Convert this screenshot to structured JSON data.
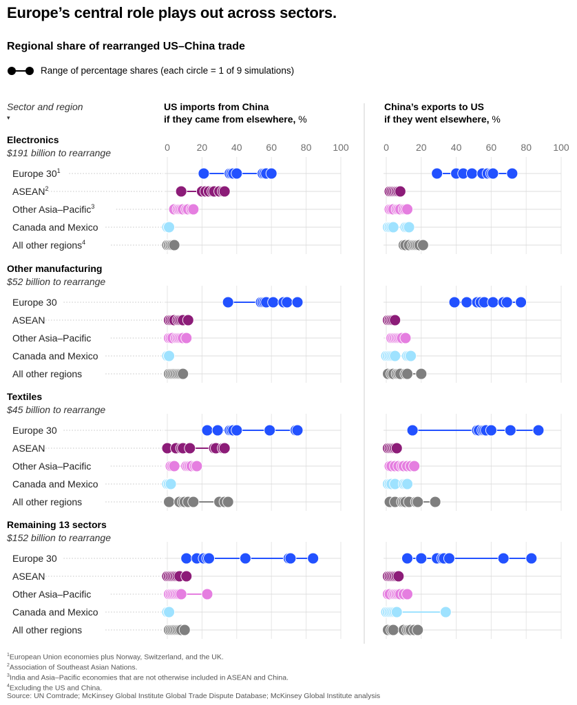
{
  "headline": "Europe’s central role plays out across sectors.",
  "subtitle": "Regional share of rearranged US–China trade",
  "legend": {
    "text": "Range of percentage shares (each circle = 1 of 9 simulations)"
  },
  "row_header": "Sector and region",
  "row_header_marker": "▾",
  "colors": {
    "Europe 30": "#2251ff",
    "ASEAN": "#8c1c78",
    "Other Asia–Pacific": "#e57ee0",
    "Canada and Mexico": "#9ee2ff",
    "All other regions": "#7f7f7f"
  },
  "footnotes": [
    {
      "mark": "1",
      "text": "European Union economies plus Norway, Switzerland, and the UK."
    },
    {
      "mark": "2",
      "text": "Association of Southeast Asian Nations."
    },
    {
      "mark": "3",
      "text": "India and Asia–Pacific economies that are not otherwise included in ASEAN and China."
    },
    {
      "mark": "4",
      "text": "Excluding the US and China."
    },
    {
      "mark": "",
      "text": "Source: UN Comtrade; McKinsey Global Institute Global Trade Dispute Database; McKinsey Global Institute analysis"
    }
  ],
  "chart_data": {
    "type": "scatter",
    "panels": [
      {
        "title_line1": "US imports from China",
        "title_line2": "if they came from elsewhere,",
        "unit": "%"
      },
      {
        "title_line1": "China’s exports to US",
        "title_line2": "if they went elsewhere,",
        "unit": "%"
      }
    ],
    "xlim": [
      0,
      100
    ],
    "x_ticks": [
      0,
      20,
      40,
      60,
      80,
      100
    ],
    "sectors": [
      {
        "name": "Electronics",
        "amount": "$191 billion to rearrange",
        "regions": [
          {
            "label": "Europe 30",
            "mark": "1",
            "values": [
              [
                21,
                36,
                37,
                38,
                40,
                55,
                56,
                57,
                60
              ],
              [
                29,
                40,
                44,
                49,
                55,
                58,
                60,
                61,
                72
              ]
            ]
          },
          {
            "label": "ASEAN",
            "mark": "2",
            "values": [
              [
                8,
                20,
                22,
                24,
                26,
                27,
                30,
                32,
                33
              ],
              [
                2,
                3,
                4,
                5,
                6,
                6,
                7,
                7,
                8
              ]
            ]
          },
          {
            "label": "Other Asia–Pacific",
            "mark": "3",
            "values": [
              [
                4,
                6,
                7,
                8,
                9,
                11,
                12,
                14,
                15
              ],
              [
                2,
                3,
                4,
                6,
                7,
                8,
                10,
                11,
                12
              ]
            ]
          },
          {
            "label": "Canada and Mexico",
            "mark": "",
            "values": [
              [
                0,
                0,
                0,
                0,
                1,
                1,
                1,
                1,
                1
              ],
              [
                1,
                1,
                2,
                2,
                3,
                4,
                11,
                12,
                13
              ]
            ]
          },
          {
            "label": "All other regions",
            "mark": "4",
            "values": [
              [
                0,
                1,
                1,
                2,
                2,
                3,
                3,
                3,
                4
              ],
              [
                10,
                11,
                13,
                15,
                16,
                17,
                18,
                19,
                21
              ]
            ]
          }
        ]
      },
      {
        "name": "Other manufacturing",
        "amount": "$52 billion to rearrange",
        "regions": [
          {
            "label": "Europe 30",
            "mark": "",
            "values": [
              [
                35,
                54,
                55,
                56,
                57,
                61,
                67,
                69,
                75
              ],
              [
                39,
                46,
                52,
                54,
                56,
                61,
                67,
                69,
                77
              ]
            ]
          },
          {
            "label": "ASEAN",
            "mark": "",
            "values": [
              [
                1,
                2,
                3,
                4,
                6,
                7,
                8,
                9,
                12
              ],
              [
                1,
                1,
                2,
                2,
                3,
                3,
                4,
                4,
                5
              ]
            ]
          },
          {
            "label": "Other Asia–Pacific",
            "mark": "",
            "values": [
              [
                1,
                2,
                3,
                5,
                6,
                7,
                8,
                9,
                11
              ],
              [
                3,
                4,
                5,
                6,
                7,
                8,
                9,
                9,
                11
              ]
            ]
          },
          {
            "label": "Canada and Mexico",
            "mark": "",
            "values": [
              [
                0,
                0,
                0,
                0,
                1,
                1,
                1,
                1,
                1
              ],
              [
                0,
                1,
                2,
                3,
                4,
                5,
                12,
                13,
                14
              ]
            ]
          },
          {
            "label": "All other regions",
            "mark": "",
            "values": [
              [
                1,
                2,
                3,
                4,
                5,
                6,
                7,
                8,
                9
              ],
              [
                1,
                3,
                4,
                6,
                7,
                8,
                11,
                12,
                20
              ]
            ]
          }
        ]
      },
      {
        "name": "Textiles",
        "amount": "$45 billion to rearrange",
        "regions": [
          {
            "label": "Europe 30",
            "mark": "",
            "values": [
              [
                23,
                29,
                36,
                37,
                38,
                40,
                59,
                74,
                75
              ],
              [
                15,
                52,
                53,
                55,
                56,
                57,
                60,
                71,
                87
              ]
            ]
          },
          {
            "label": "ASEAN",
            "mark": "",
            "values": [
              [
                0,
                5,
                8,
                9,
                13,
                27,
                28,
                32,
                33
              ],
              [
                1,
                2,
                3,
                4,
                4,
                5,
                5,
                6,
                6
              ]
            ]
          },
          {
            "label": "Other Asia–Pacific",
            "mark": "",
            "values": [
              [
                2,
                3,
                4,
                11,
                12,
                13,
                14,
                16,
                17
              ],
              [
                2,
                3,
                5,
                7,
                9,
                10,
                12,
                14,
                16
              ]
            ]
          },
          {
            "label": "Canada and Mexico",
            "mark": "",
            "values": [
              [
                0,
                0,
                0,
                1,
                1,
                1,
                1,
                1,
                2
              ],
              [
                1,
                1,
                2,
                3,
                5,
                10,
                11,
                12,
                12
              ]
            ]
          },
          {
            "label": "All other regions",
            "mark": "",
            "values": [
              [
                1,
                7,
                9,
                10,
                12,
                15,
                30,
                33,
                35
              ],
              [
                2,
                5,
                9,
                10,
                11,
                13,
                17,
                18,
                28
              ]
            ]
          }
        ]
      },
      {
        "name": "Remaining 13 sectors",
        "amount": "$152 billion to rearrange",
        "regions": [
          {
            "label": "Europe 30",
            "mark": "",
            "values": [
              [
                11,
                17,
                21,
                23,
                24,
                45,
                70,
                71,
                84
              ],
              [
                12,
                20,
                29,
                32,
                33,
                36,
                67,
                83,
                83
              ]
            ]
          },
          {
            "label": "ASEAN",
            "mark": "",
            "values": [
              [
                0,
                1,
                2,
                3,
                4,
                5,
                6,
                7,
                11
              ],
              [
                1,
                1,
                2,
                2,
                3,
                4,
                5,
                6,
                7
              ]
            ]
          },
          {
            "label": "Other Asia–Pacific",
            "mark": "",
            "values": [
              [
                1,
                2,
                3,
                4,
                5,
                6,
                7,
                8,
                23
              ],
              [
                1,
                2,
                4,
                5,
                6,
                7,
                8,
                10,
                12
              ]
            ]
          },
          {
            "label": "Canada and Mexico",
            "mark": "",
            "values": [
              [
                0,
                0,
                0,
                0,
                0,
                1,
                1,
                1,
                1
              ],
              [
                0,
                1,
                2,
                3,
                4,
                5,
                6,
                6,
                34
              ]
            ]
          },
          {
            "label": "All other regions",
            "mark": "",
            "values": [
              [
                1,
                2,
                3,
                4,
                5,
                6,
                7,
                8,
                10
              ],
              [
                1,
                3,
                4,
                10,
                12,
                13,
                14,
                16,
                18
              ]
            ]
          }
        ]
      }
    ]
  }
}
